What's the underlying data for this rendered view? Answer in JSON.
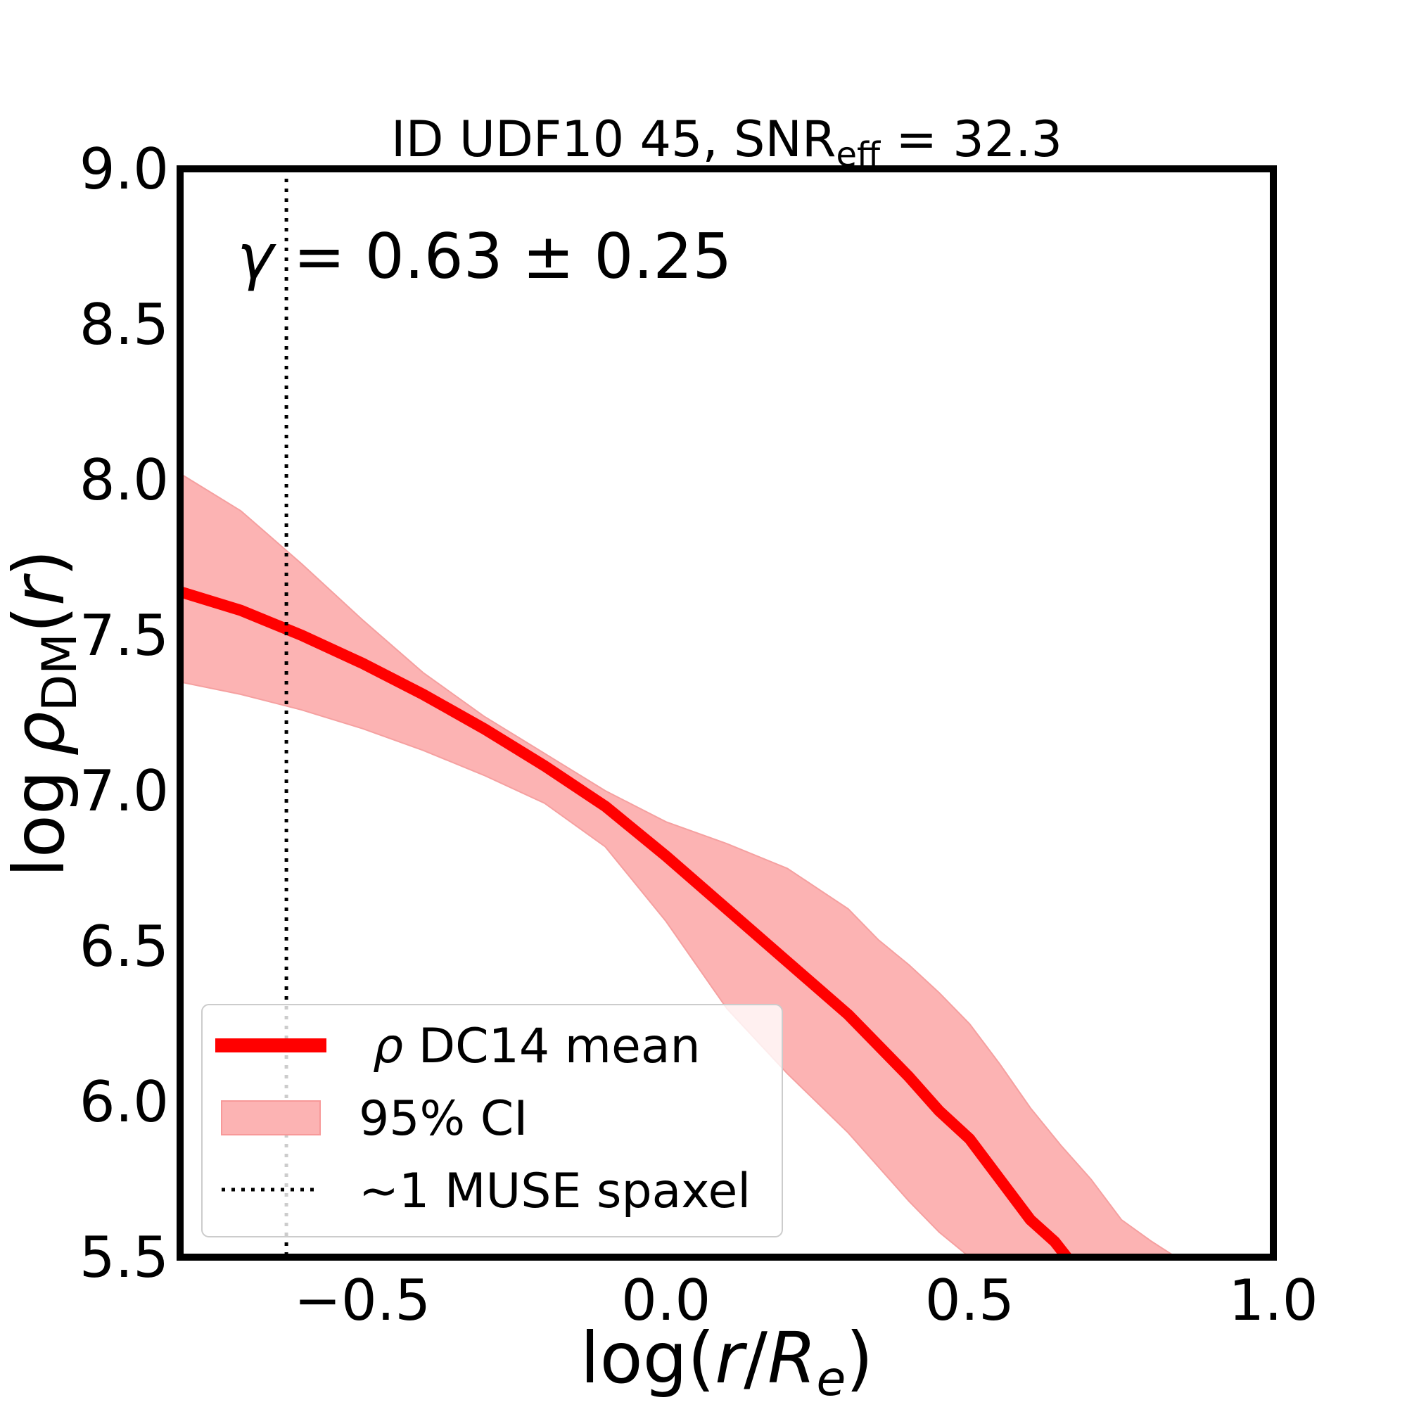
{
  "chart_data": {
    "type": "line",
    "title": {
      "prefix": "ID UDF10 45, SNR",
      "subscript": "eff",
      "suffix": " = 32.3"
    },
    "xlabel": {
      "prefix": "log(",
      "r": "r",
      "slash": "/",
      "R": "R",
      "sub": "e",
      "suffix": ")"
    },
    "ylabel": {
      "log": "log",
      "rho": "ρ",
      "sub": "DM",
      "paren_open": "(",
      "r": "r",
      "paren_close": ")"
    },
    "xlim": [
      -0.8,
      1.0
    ],
    "ylim": [
      5.5,
      9.0
    ],
    "xticks": [
      -0.5,
      0.0,
      0.5,
      1.0
    ],
    "xtick_labels": [
      "−0.5",
      "0.0",
      "0.5",
      "1.0"
    ],
    "yticks": [
      5.5,
      6.0,
      6.5,
      7.0,
      7.5,
      8.0,
      8.5,
      9.0
    ],
    "ytick_labels": [
      "5.5",
      "6.0",
      "6.5",
      "7.0",
      "7.5",
      "8.0",
      "8.5",
      "9.0"
    ],
    "annotation": {
      "gamma": "γ",
      "text": " = 0.63 ± 0.25"
    },
    "vline": {
      "x": -0.625,
      "style": "dotted",
      "label": "~1 MUSE spaxel"
    },
    "series": [
      {
        "name": "ρ DC14 mean",
        "legend_rho": "ρ",
        "legend_rest": " DC14 mean",
        "color": "#ff0000",
        "x": [
          -0.8,
          -0.7,
          -0.6,
          -0.5,
          -0.4,
          -0.3,
          -0.2,
          -0.1,
          0.0,
          0.1,
          0.2,
          0.3,
          0.4,
          0.45,
          0.5,
          0.55,
          0.6,
          0.64,
          0.66
        ],
        "y": [
          7.64,
          7.58,
          7.5,
          7.41,
          7.31,
          7.2,
          7.08,
          6.95,
          6.79,
          6.62,
          6.45,
          6.28,
          6.08,
          5.97,
          5.88,
          5.75,
          5.62,
          5.55,
          5.5
        ]
      }
    ],
    "band": {
      "name": "95% CI",
      "color": "#fcb3b3",
      "x_upper": [
        -0.8,
        -0.7,
        -0.6,
        -0.5,
        -0.4,
        -0.3,
        -0.2,
        -0.1,
        0.0,
        0.1,
        0.2,
        0.3,
        0.35,
        0.4,
        0.45,
        0.5,
        0.55,
        0.6,
        0.65,
        0.7,
        0.75,
        0.8,
        0.84
      ],
      "upper": [
        8.02,
        7.9,
        7.73,
        7.55,
        7.38,
        7.24,
        7.12,
        7.0,
        6.9,
        6.83,
        6.75,
        6.62,
        6.52,
        6.44,
        6.35,
        6.25,
        6.12,
        5.98,
        5.86,
        5.75,
        5.62,
        5.55,
        5.5
      ],
      "x_lower": [
        -0.8,
        -0.7,
        -0.6,
        -0.5,
        -0.4,
        -0.3,
        -0.2,
        -0.1,
        0.0,
        0.1,
        0.2,
        0.3,
        0.4,
        0.45,
        0.5
      ],
      "lower": [
        7.35,
        7.31,
        7.26,
        7.2,
        7.13,
        7.05,
        6.96,
        6.82,
        6.58,
        6.3,
        6.09,
        5.9,
        5.68,
        5.58,
        5.5
      ]
    },
    "legend": {
      "position": "lower-left",
      "entries": [
        "ρ DC14 mean",
        "95% CI",
        "~1 MUSE spaxel"
      ]
    },
    "grid": false
  }
}
